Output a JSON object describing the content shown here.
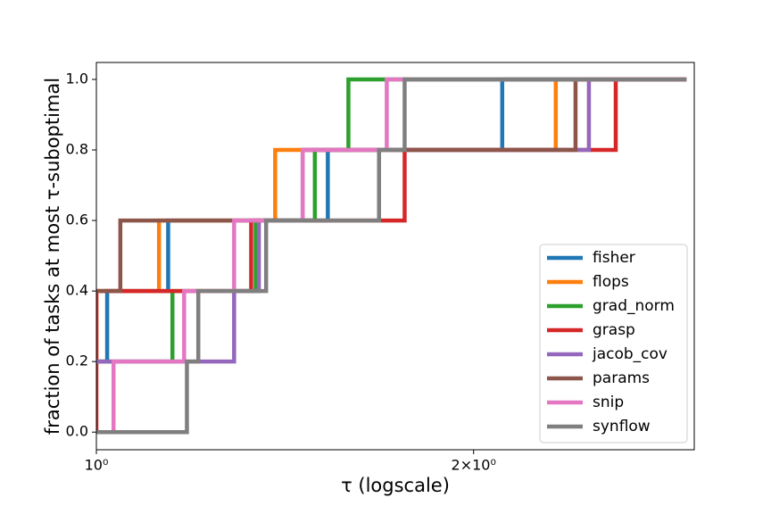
{
  "chart_data": {
    "type": "step",
    "xlabel": "τ (logscale)",
    "ylabel": "fraction of tasks at most τ-suboptimal",
    "xscale": "log",
    "xlim": [
      1,
      3.0
    ],
    "ylim": [
      -0.05,
      1.048
    ],
    "xticks": [
      {
        "value": 1,
        "label": "10⁰"
      },
      {
        "value": 2,
        "label": "2×10⁰"
      }
    ],
    "yticks": [
      {
        "value": 0,
        "label": "0.0"
      },
      {
        "value": 0.2,
        "label": "0.2"
      },
      {
        "value": 0.4,
        "label": "0.4"
      },
      {
        "value": 0.6,
        "label": "0.6"
      },
      {
        "value": 0.8,
        "label": "0.8"
      },
      {
        "value": 1,
        "label": "1.0"
      }
    ],
    "legend": "lower right",
    "series": [
      {
        "name": "fisher",
        "color": "#1f77b4",
        "x": [
          1,
          1.02,
          1.141,
          1.53,
          2.108,
          2.957
        ],
        "values": [
          0.2,
          0.4,
          0.6,
          0.8,
          1.0,
          1.0
        ]
      },
      {
        "name": "flops",
        "color": "#ff7f0e",
        "x": [
          1,
          1,
          1.122,
          1.389,
          2.326,
          2.957
        ],
        "values": [
          0.2,
          0.4,
          0.6,
          0.8,
          1.0,
          1.0
        ]
      },
      {
        "name": "grad_norm",
        "color": "#2ca02c",
        "x": [
          1,
          1.15,
          1.34,
          1.494,
          1.589,
          2.957
        ],
        "values": [
          0.2,
          0.4,
          0.6,
          0.8,
          1.0,
          1.0
        ]
      },
      {
        "name": "grasp",
        "color": "#d62728",
        "x": [
          1,
          1,
          1.329,
          1.762,
          2.597,
          2.957
        ],
        "values": [
          0,
          0.4,
          0.6,
          0.8,
          1.0,
          1.0
        ]
      },
      {
        "name": "jacob_cov",
        "color": "#9467bd",
        "x": [
          1,
          1.288,
          1.348,
          1.461,
          2.472,
          2.957
        ],
        "values": [
          0.2,
          0.4,
          0.6,
          0.8,
          1.0,
          1.0
        ]
      },
      {
        "name": "params",
        "color": "#8c564b",
        "x": [
          1,
          1.045,
          1.461,
          2.412,
          2.957
        ],
        "values": [
          0.4,
          0.6,
          0.8,
          1.0,
          1.0
        ]
      },
      {
        "name": "snip",
        "color": "#e377c2",
        "x": [
          1,
          1.032,
          1.175,
          1.288,
          1.461,
          1.705,
          2.957
        ],
        "values": [
          0,
          0.2,
          0.4,
          0.6,
          0.8,
          1.0,
          1.0
        ]
      },
      {
        "name": "synflow",
        "color": "#7f7f7f",
        "x": [
          1,
          1.181,
          1.206,
          1.366,
          1.681,
          1.762,
          2.957
        ],
        "values": [
          0,
          0.2,
          0.4,
          0.6,
          0.8,
          1.0,
          1.0
        ]
      }
    ]
  }
}
